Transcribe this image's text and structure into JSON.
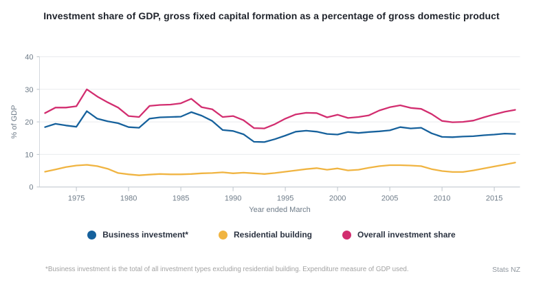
{
  "title": "Investment share of GDP, gross fixed capital formation as a percentage of gross domestic product",
  "footnote": "*Business investment is the total of all investment types excluding residential building. Expenditure measure of GDP used.",
  "brand": "Stats NZ",
  "colors": {
    "business_investment": "#16619c",
    "residential_building": "#f0b441",
    "overall_investment": "#d22d6f",
    "grid": "#e9ebee",
    "axis": "#bcc3ca",
    "tick_text": "#6e7b88"
  },
  "chart_data": {
    "type": "line",
    "title": "Investment share of GDP, gross fixed capital formation as a percentage of gross domestic product",
    "xlabel": "Year ended March",
    "ylabel": "% of GDP",
    "ylim": [
      0,
      40
    ],
    "y_ticks": [
      0,
      10,
      20,
      30,
      40
    ],
    "x_ticks": [
      1975,
      1980,
      1985,
      1990,
      1995,
      2000,
      2005,
      2010,
      2015
    ],
    "grid": "horizontal",
    "legend_position": "bottom",
    "x": [
      1972,
      1973,
      1974,
      1975,
      1976,
      1977,
      1978,
      1979,
      1980,
      1981,
      1982,
      1983,
      1984,
      1985,
      1986,
      1987,
      1988,
      1989,
      1990,
      1991,
      1992,
      1993,
      1994,
      1995,
      1996,
      1997,
      1998,
      1999,
      2000,
      2001,
      2002,
      2003,
      2004,
      2005,
      2006,
      2007,
      2008,
      2009,
      2010,
      2011,
      2012,
      2013,
      2014,
      2015,
      2016,
      2017
    ],
    "series": [
      {
        "name": "Business investment*",
        "color": "#16619c",
        "values": [
          18.4,
          19.4,
          18.9,
          18.5,
          23.3,
          21.0,
          20.2,
          19.6,
          18.4,
          18.2,
          21.0,
          21.4,
          21.5,
          21.6,
          23.0,
          21.9,
          20.3,
          17.5,
          17.2,
          16.2,
          13.9,
          13.8,
          14.7,
          15.8,
          17.0,
          17.3,
          17.0,
          16.3,
          16.1,
          16.9,
          16.6,
          16.9,
          17.1,
          17.4,
          18.4,
          18.0,
          18.2,
          16.5,
          15.4,
          15.3,
          15.5,
          15.6,
          15.9,
          16.1,
          16.4,
          16.3
        ]
      },
      {
        "name": "Residential building",
        "color": "#f0b441",
        "values": [
          4.7,
          5.4,
          6.1,
          6.6,
          6.8,
          6.4,
          5.6,
          4.3,
          3.9,
          3.6,
          3.8,
          4.0,
          3.9,
          3.9,
          4.0,
          4.2,
          4.3,
          4.5,
          4.2,
          4.4,
          4.2,
          4.0,
          4.3,
          4.7,
          5.1,
          5.5,
          5.8,
          5.3,
          5.7,
          5.1,
          5.3,
          5.9,
          6.4,
          6.7,
          6.7,
          6.6,
          6.4,
          5.5,
          4.9,
          4.6,
          4.6,
          5.1,
          5.7,
          6.3,
          6.9,
          7.5
        ]
      },
      {
        "name": "Overall investment share",
        "color": "#d22d6f",
        "values": [
          22.7,
          24.4,
          24.4,
          24.8,
          30.0,
          27.8,
          26.0,
          24.4,
          21.8,
          21.5,
          24.9,
          25.2,
          25.3,
          25.7,
          27.1,
          24.5,
          23.9,
          21.5,
          21.8,
          20.5,
          18.1,
          18.0,
          19.3,
          21.0,
          22.3,
          22.8,
          22.7,
          21.4,
          22.2,
          21.2,
          21.5,
          22.0,
          23.5,
          24.5,
          25.1,
          24.3,
          24.0,
          22.4,
          20.3,
          19.9,
          20.0,
          20.4,
          21.4,
          22.3,
          23.1,
          23.7
        ]
      }
    ]
  }
}
